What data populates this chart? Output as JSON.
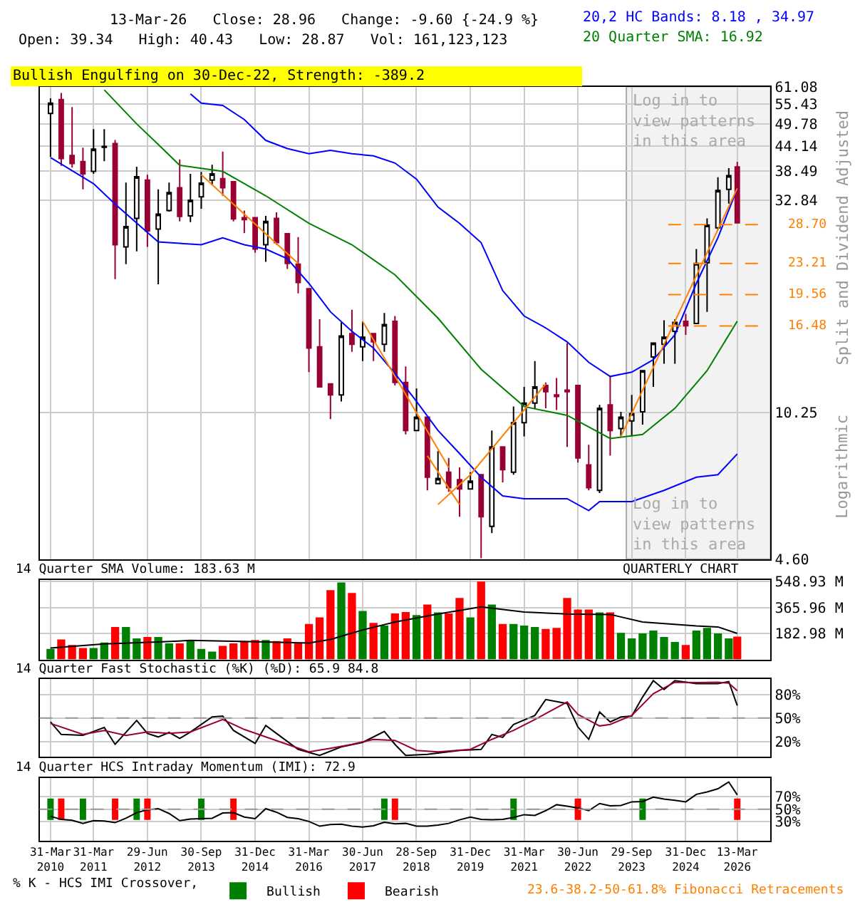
{
  "chart_data": [
    {
      "type": "candlestick",
      "title": "13-Mar-26   Close: 28.96   Change: -9.60 {-24.9 %}",
      "subtitle": "Open: 39.34   High: 40.43   Low: 28.87   Vol: 161,123,123",
      "ylabel": "Split and Dividend Adjusted",
      "x": [
        "2010-03-31",
        "2010-06-30",
        "2010-09-30",
        "2010-12-31",
        "2011-03-31",
        "2011-06-30",
        "2011-09-30",
        "2011-12-31",
        "2012-03-31",
        "2012-06-30",
        "2012-09-30",
        "2012-12-31",
        "2013-03-31",
        "2013-06-30",
        "2013-09-30",
        "2013-12-31",
        "2014-03-31",
        "2014-06-30",
        "2014-09-30",
        "2014-12-31",
        "2015-03-31",
        "2015-06-30",
        "2015-09-30",
        "2015-12-31",
        "2016-03-31",
        "2016-06-30",
        "2016-09-30",
        "2016-12-31",
        "2017-03-31",
        "2017-06-30",
        "2017-09-30",
        "2017-12-31",
        "2018-03-31",
        "2018-06-30",
        "2018-09-30",
        "2018-12-31",
        "2019-03-31",
        "2019-06-30",
        "2019-09-30",
        "2019-12-31",
        "2020-03-31",
        "2020-06-30",
        "2020-09-30",
        "2020-12-31",
        "2021-03-31",
        "2021-06-30",
        "2021-09-30",
        "2021-12-31",
        "2022-03-31",
        "2022-06-30",
        "2022-09-30",
        "2022-12-31",
        "2023-03-31",
        "2023-06-30",
        "2023-09-30",
        "2023-12-31",
        "2024-03-31",
        "2024-06-30",
        "2024-09-30",
        "2024-12-31",
        "2025-03-31",
        "2025-06-30",
        "2025-09-30",
        "2025-12-31",
        "2026-03-13"
      ],
      "ohlc": [
        [
          52.7,
          57.3,
          41.6,
          55.8
        ],
        [
          56.9,
          59.0,
          39.6,
          41.2
        ],
        [
          41.9,
          54.6,
          39.2,
          40.1
        ],
        [
          40.5,
          43.7,
          34.8,
          37.9
        ],
        [
          38.4,
          48.4,
          37.9,
          43.4
        ],
        [
          43.8,
          48.4,
          40.6,
          44.0
        ],
        [
          44.7,
          45.6,
          21.3,
          25.7
        ],
        [
          25.4,
          36.1,
          23.1,
          28.4
        ],
        [
          29.7,
          39.4,
          24.8,
          37.3
        ],
        [
          36.6,
          37.7,
          25.4,
          27.7
        ],
        [
          28.0,
          34.8,
          20.7,
          30.4
        ],
        [
          31.0,
          36.1,
          30.8,
          34.2
        ],
        [
          35.1,
          41.0,
          29.2,
          30.0
        ],
        [
          30.1,
          37.9,
          29.1,
          32.8
        ],
        [
          33.4,
          38.3,
          31.3,
          36.0
        ],
        [
          36.6,
          39.8,
          35.6,
          37.9
        ],
        [
          36.9,
          42.8,
          33.6,
          35.1
        ],
        [
          36.3,
          36.3,
          29.2,
          29.6
        ],
        [
          29.8,
          31.0,
          27.4,
          29.5
        ],
        [
          29.8,
          29.8,
          24.6,
          25.1
        ],
        [
          25.7,
          30.1,
          23.4,
          29.2
        ],
        [
          29.7,
          30.7,
          25.7,
          26.0
        ],
        [
          27.3,
          27.3,
          22.5,
          23.2
        ],
        [
          23.1,
          26.8,
          19.7,
          20.9
        ],
        [
          20.2,
          20.2,
          12.8,
          14.6
        ],
        [
          14.7,
          17.1,
          11.8,
          11.8
        ],
        [
          12.0,
          12.0,
          9.9,
          11.3
        ],
        [
          11.3,
          16.8,
          10.9,
          15.6
        ],
        [
          15.8,
          18.0,
          14.3,
          14.9
        ],
        [
          14.7,
          16.9,
          13.6,
          15.5
        ],
        [
          15.8,
          15.8,
          13.6,
          15.1
        ],
        [
          14.9,
          17.7,
          14.3,
          16.6
        ],
        [
          16.9,
          17.4,
          11.9,
          12.1
        ],
        [
          12.1,
          13.2,
          9.1,
          9.3
        ],
        [
          9.3,
          11.7,
          9.3,
          10.0
        ],
        [
          10.0,
          10.0,
          6.7,
          7.2
        ],
        [
          6.95,
          8.3,
          6.95,
          7.15
        ],
        [
          7.4,
          8.0,
          6.65,
          6.8
        ],
        [
          7.1,
          7.6,
          5.8,
          6.75
        ],
        [
          6.75,
          7.4,
          6.75,
          7.05
        ],
        [
          7.3,
          7.3,
          4.62,
          5.8
        ],
        [
          5.5,
          9.3,
          5.3,
          8.5
        ],
        [
          8.5,
          8.5,
          7.0,
          7.5
        ],
        [
          7.4,
          10.6,
          7.3,
          9.7
        ],
        [
          9.7,
          11.8,
          9.0,
          10.8
        ],
        [
          10.8,
          13.6,
          10.5,
          11.8
        ],
        [
          11.9,
          12.1,
          10.5,
          11.5
        ],
        [
          11.3,
          12.4,
          10.4,
          11.2
        ],
        [
          11.6,
          15.0,
          8.5,
          11.5
        ],
        [
          11.9,
          11.9,
          7.8,
          8.0
        ],
        [
          7.7,
          8.6,
          6.7,
          6.8
        ],
        [
          6.7,
          10.7,
          6.6,
          10.5
        ],
        [
          10.7,
          12.5,
          8.1,
          9.3
        ],
        [
          9.4,
          10.3,
          9.0,
          10.0
        ],
        [
          9.8,
          11.3,
          9.0,
          10.2
        ],
        [
          10.3,
          12.9,
          9.6,
          12.9
        ],
        [
          13.9,
          15.0,
          11.8,
          15.0
        ],
        [
          14.9,
          17.0,
          13.4,
          15.5
        ],
        [
          16.0,
          17.1,
          13.4,
          16.8
        ],
        [
          16.9,
          17.6,
          15.7,
          16.5
        ],
        [
          16.7,
          25.1,
          16.7,
          23.2
        ],
        [
          23.3,
          29.7,
          17.8,
          28.6
        ],
        [
          28.2,
          37.2,
          27.9,
          34.6
        ],
        [
          34.8,
          39.1,
          32.2,
          37.5
        ],
        [
          39.34,
          40.43,
          28.87,
          28.96
        ]
      ],
      "series": [
        {
          "type": "line",
          "name": "20,2 HC Bands: 8.18 , 34.97",
          "color": "#0000ff",
          "x": [
            "2013-06-30",
            "2013-09-30",
            "2014-03-31",
            "2014-09-30",
            "2015-03-31",
            "2015-09-30",
            "2016-03-31",
            "2016-09-30",
            "2017-03-31",
            "2017-09-30",
            "2018-03-31",
            "2018-09-30",
            "2019-03-31",
            "2019-09-30",
            "2020-03-31",
            "2020-09-30",
            "2021-03-31",
            "2021-09-30",
            "2022-03-31",
            "2022-09-30",
            "2023-03-31",
            "2023-09-30",
            "2024-03-31",
            "2024-09-30",
            "2025-03-31",
            "2025-09-30",
            "2026-03-13"
          ],
          "values": [
            58.7,
            55.8,
            55.1,
            51.0,
            45.5,
            43.5,
            42.3,
            43.1,
            42.3,
            41.8,
            40.2,
            36.8,
            31.6,
            28.9,
            26.0,
            20.0,
            17.4,
            16.3,
            15.1,
            13.5,
            12.5,
            12.8,
            13.7,
            15.7,
            20.8,
            26.7,
            34.97
          ]
        },
        {
          "type": "line",
          "color": "#0000ff",
          "x": [
            "2010-03-31",
            "2011-03-31",
            "2011-09-30",
            "2012-09-30",
            "2013-09-30",
            "2014-03-31",
            "2014-09-30",
            "2015-03-31",
            "2015-09-30",
            "2016-03-31",
            "2016-09-30",
            "2017-03-31",
            "2017-09-30",
            "2018-03-31",
            "2018-09-30",
            "2019-03-31",
            "2019-09-30",
            "2020-03-31",
            "2020-09-30",
            "2021-03-31",
            "2022-03-31",
            "2022-09-30",
            "2022-12-31",
            "2023-09-30",
            "2024-06-30",
            "2025-03-31",
            "2025-09-30",
            "2026-03-13"
          ],
          "values": [
            41.4,
            35.9,
            32.1,
            26.1,
            25.7,
            26.7,
            25.7,
            25.1,
            23.8,
            20.8,
            17.8,
            16.0,
            14.6,
            12.7,
            10.9,
            9.3,
            8.2,
            7.2,
            6.5,
            6.4,
            6.4,
            6.0,
            6.3,
            6.3,
            6.7,
            7.2,
            7.3,
            8.18
          ]
        },
        {
          "type": "line",
          "name": "20 Quarter SMA: 16.92",
          "color": "#008000",
          "x": [
            "2011-06-30",
            "2012-03-31",
            "2012-09-30",
            "2013-03-31",
            "2014-03-31",
            "2015-03-31",
            "2016-03-31",
            "2017-03-31",
            "2018-03-31",
            "2019-03-31",
            "2020-03-31",
            "2021-03-31",
            "2022-03-31",
            "2023-03-31",
            "2023-12-31",
            "2024-09-30",
            "2025-06-30",
            "2026-03-13"
          ],
          "values": [
            60.0,
            49.8,
            44.5,
            39.7,
            38.4,
            33.6,
            28.9,
            25.7,
            21.8,
            17.2,
            13.0,
            10.6,
            10.1,
            8.9,
            9.1,
            10.5,
            12.9,
            16.92
          ]
        },
        {
          "type": "line",
          "color": "#ff8000",
          "x": [
            "2013-09-30",
            "2015-12-31"
          ],
          "values": [
            37.7,
            23.2
          ]
        },
        {
          "type": "line",
          "color": "#ff8000",
          "x": [
            "2017-06-30",
            "2019-06-30"
          ],
          "values": [
            16.9,
            7.6
          ]
        },
        {
          "type": "line",
          "color": "#ff8000",
          "x": [
            "2018-12-31",
            "2019-09-30"
          ],
          "values": [
            8.1,
            6.2
          ]
        },
        {
          "type": "line",
          "color": "#ff8000",
          "x": [
            "2019-03-31",
            "2019-12-31",
            "2021-09-30"
          ],
          "values": [
            6.2,
            7.3,
            12.0
          ]
        },
        {
          "type": "line",
          "color": "#ff8000",
          "x": [
            "2023-06-30",
            "2026-03-13"
          ],
          "values": [
            9.0,
            35.0
          ]
        }
      ],
      "xlim": [
        "2009-12-28",
        "2026-12-20"
      ],
      "xticks": [
        "2010-03-31",
        "2011-03-31",
        "2012-06-29",
        "2013-09-30",
        "2014-12-31",
        "2016-03-31",
        "2017-06-30",
        "2018-09-28",
        "2019-12-31",
        "2021-03-31",
        "2022-06-30",
        "2023-09-29",
        "2024-12-31",
        "2026-03-13"
      ],
      "ylim": [
        4.6,
        61.08
      ],
      "log": true,
      "yticks": [
        {
          "value": 4.6,
          "label": "4.60"
        },
        10.25,
        32.84,
        38.49,
        44.14,
        49.78,
        55.43,
        61.08
      ],
      "grid": true,
      "tick_labels": "y",
      "bands": [
        {
          "axis": "x",
          "from": "2023-08-15",
          "to": "2026-12-20",
          "color": "#f2f2f2",
          "label": "Log in to\nview patterns\nin this area"
        }
      ],
      "ref_lines": [
        {
          "axis": "y",
          "value": 28.7,
          "label": "28.70",
          "color": "#ff8000",
          "line_style": "dashed"
        },
        {
          "axis": "y",
          "value": 23.21,
          "label": "23.21",
          "color": "#ff8000",
          "line_style": "dashed"
        },
        {
          "axis": "y",
          "value": 19.56,
          "label": "19.56",
          "color": "#ff8000",
          "line_style": "dashed"
        },
        {
          "axis": "y",
          "value": 16.48,
          "label": "16.48",
          "color": "#ff8000",
          "line_style": "dashed"
        }
      ],
      "annotations": [
        "Bullish Engulfing on 30-Dec-22, Strength: -389.2",
        "Logarithmic",
        "Log in to\nview patterns\nin this area"
      ]
    },
    {
      "type": "bar",
      "title": "14 Quarter SMA Volume: 183.63 M",
      "series": [
        {
          "type": "bar",
          "x": [
            "2010-03-31",
            "2010-06-30",
            "2010-09-30",
            "2010-12-31",
            "2011-03-31",
            "2011-06-30",
            "2011-09-30",
            "2011-12-31",
            "2012-03-31",
            "2012-06-30",
            "2012-09-30",
            "2012-12-31",
            "2013-03-31",
            "2013-06-30",
            "2013-09-30",
            "2013-12-31",
            "2014-03-31",
            "2014-06-30",
            "2014-09-30",
            "2014-12-31",
            "2015-03-31",
            "2015-06-30",
            "2015-09-30",
            "2015-12-31",
            "2016-03-31",
            "2016-06-30",
            "2016-09-30",
            "2016-12-31",
            "2017-03-31",
            "2017-06-30",
            "2017-09-30",
            "2017-12-31",
            "2018-03-31",
            "2018-06-30",
            "2018-09-30",
            "2018-12-31",
            "2019-03-31",
            "2019-06-30",
            "2019-09-30",
            "2019-12-31",
            "2020-03-31",
            "2020-06-30",
            "2020-09-30",
            "2020-12-31",
            "2021-03-31",
            "2021-06-30",
            "2021-09-30",
            "2021-12-31",
            "2022-03-31",
            "2022-06-30",
            "2022-09-30",
            "2022-12-31",
            "2023-03-31",
            "2023-06-30",
            "2023-09-30",
            "2023-12-31",
            "2024-03-31",
            "2024-06-30",
            "2024-09-30",
            "2024-12-31",
            "2025-03-31",
            "2025-06-30",
            "2025-09-30",
            "2025-12-31",
            "2026-03-13"
          ],
          "values": [
            74,
            141,
            102,
            81,
            81,
            120,
            229,
            229,
            148,
            158,
            158,
            113,
            113,
            134,
            74,
            56,
            95,
            113,
            130,
            137,
            137,
            130,
            148,
            113,
            250,
            296,
            489,
            542,
            468,
            341,
            257,
            239,
            324,
            334,
            313,
            387,
            331,
            324,
            433,
            296,
            549,
            387,
            250,
            250,
            239,
            229,
            215,
            222,
            433,
            352,
            352,
            331,
            331,
            187,
            148,
            183,
            204,
            158,
            123,
            102,
            204,
            222,
            183,
            148,
            161
          ],
          "colors": [
            "#008000",
            "#ff0000",
            "#ff0000",
            "#ff0000",
            "#008000",
            "#008000",
            "#ff0000",
            "#008000",
            "#008000",
            "#ff0000",
            "#008000",
            "#008000",
            "#ff0000",
            "#008000",
            "#008000",
            "#008000",
            "#ff0000",
            "#ff0000",
            "#ff0000",
            "#ff0000",
            "#008000",
            "#ff0000",
            "#ff0000",
            "#ff0000",
            "#ff0000",
            "#ff0000",
            "#ff0000",
            "#008000",
            "#ff0000",
            "#008000",
            "#ff0000",
            "#008000",
            "#ff0000",
            "#ff0000",
            "#008000",
            "#ff0000",
            "#008000",
            "#ff0000",
            "#ff0000",
            "#008000",
            "#ff0000",
            "#008000",
            "#ff0000",
            "#008000",
            "#008000",
            "#008000",
            "#ff0000",
            "#ff0000",
            "#ff0000",
            "#ff0000",
            "#ff0000",
            "#008000",
            "#ff0000",
            "#008000",
            "#008000",
            "#008000",
            "#008000",
            "#008000",
            "#008000",
            "#ff0000",
            "#008000",
            "#008000",
            "#008000",
            "#008000",
            "#ff0000"
          ]
        },
        {
          "type": "line",
          "color": "#000000",
          "x": [
            "2010-03-31",
            "2011-06-30",
            "2012-09-30",
            "2013-06-30",
            "2015-03-31",
            "2016-03-31",
            "2016-09-30",
            "2017-06-30",
            "2018-03-31",
            "2019-03-31",
            "2020-03-31",
            "2021-03-31",
            "2022-03-31",
            "2023-03-31",
            "2023-12-31",
            "2025-03-31",
            "2025-09-30",
            "2026-03-13"
          ],
          "values": [
            81,
            109,
            123,
            134,
            123,
            116,
            141,
            208,
            264,
            320,
            370,
            334,
            320,
            317,
            264,
            236,
            229,
            183.63
          ]
        }
      ],
      "xlim": [
        "2009-12-28",
        "2026-12-20"
      ],
      "xticks": [
        "2010-03-31",
        "2011-03-31",
        "2012-06-29",
        "2013-09-30",
        "2014-12-31",
        "2016-03-31",
        "2017-06-30",
        "2018-09-28",
        "2019-12-31",
        "2021-03-31",
        "2022-06-30",
        "2023-09-29",
        "2024-12-31",
        "2026-03-13"
      ],
      "ylim": [
        0,
        560
      ],
      "yticks": [
        {
          "value": 182.98,
          "label": "182.98 M"
        },
        {
          "value": 365.96,
          "label": "365.96 M"
        },
        {
          "value": 548.93,
          "label": "548.93 M"
        }
      ],
      "grid": true,
      "tick_labels": "y",
      "annotations": [
        "QUARTERLY CHART"
      ]
    },
    {
      "type": "line",
      "title": "14 Quarter Fast Stochastic (%K) (%D): 65.9 84.8",
      "series": [
        {
          "color": "#000000",
          "x": [
            "2010-03-31",
            "2010-06-30",
            "2010-12-31",
            "2011-06-30",
            "2011-09-30",
            "2012-03-31",
            "2012-06-30",
            "2012-09-30",
            "2012-12-31",
            "2013-03-31",
            "2013-06-30",
            "2013-12-31",
            "2014-03-31",
            "2014-06-30",
            "2014-12-31",
            "2015-03-31",
            "2015-06-30",
            "2015-12-31",
            "2016-06-30",
            "2016-12-31",
            "2017-06-30",
            "2017-12-31",
            "2018-03-31",
            "2018-06-30",
            "2018-12-31",
            "2019-09-30",
            "2020-03-31",
            "2020-06-30",
            "2020-09-30",
            "2020-12-31",
            "2021-06-30",
            "2021-09-30",
            "2022-03-31",
            "2022-06-30",
            "2022-09-30",
            "2022-12-31",
            "2023-03-31",
            "2023-06-30",
            "2023-09-30",
            "2023-12-31",
            "2024-03-31",
            "2024-06-30",
            "2024-09-30",
            "2025-03-31",
            "2025-09-30",
            "2025-12-31",
            "2026-03-13"
          ],
          "values": [
            44.9,
            28.9,
            27.7,
            37.9,
            16.2,
            46.8,
            30.2,
            25.7,
            31.5,
            23.8,
            32.1,
            51.3,
            52.5,
            34.0,
            17.4,
            40.4,
            30.2,
            9.8,
            2.1,
            13.0,
            18.7,
            32.8,
            16.2,
            2.1,
            3.4,
            8.5,
            9.8,
            28.9,
            25.1,
            41.7,
            53.2,
            73.6,
            68.5,
            38.5,
            22.6,
            57.6,
            44.9,
            51.3,
            52.5,
            76.8,
            97.8,
            86.4,
            97.8,
            94.0,
            94.0,
            96.6,
            65.9
          ]
        },
        {
          "color": "#990033",
          "x": [
            "2010-03-31",
            "2010-12-31",
            "2011-06-30",
            "2011-12-31",
            "2012-06-30",
            "2012-12-31",
            "2013-06-30",
            "2014-03-31",
            "2014-09-30",
            "2015-03-31",
            "2015-09-30",
            "2016-03-31",
            "2016-09-30",
            "2017-03-31",
            "2017-09-30",
            "2018-03-31",
            "2018-09-30",
            "2019-03-31",
            "2019-12-31",
            "2020-06-30",
            "2020-12-31",
            "2021-06-30",
            "2022-03-31",
            "2022-06-30",
            "2022-12-31",
            "2023-03-31",
            "2023-09-30",
            "2024-03-31",
            "2024-09-30",
            "2025-03-31",
            "2025-09-30",
            "2025-12-31",
            "2026-03-13"
          ],
          "values": [
            43.0,
            28.9,
            34.0,
            27.7,
            32.1,
            30.2,
            32.1,
            48.1,
            35.3,
            25.7,
            16.2,
            6.6,
            11.1,
            16.2,
            22.6,
            21.3,
            8.5,
            6.6,
            9.8,
            22.6,
            34.0,
            48.1,
            70.4,
            54.5,
            39.8,
            41.7,
            53.2,
            81.2,
            95.9,
            95.3,
            95.9,
            94.6,
            84.8
          ]
        }
      ],
      "xlim": [
        "2009-12-28",
        "2026-12-20"
      ],
      "xticks": [
        "2010-03-31",
        "2011-03-31",
        "2012-06-29",
        "2013-09-30",
        "2014-12-31",
        "2016-03-31",
        "2017-06-30",
        "2018-09-28",
        "2019-12-31",
        "2021-03-31",
        "2022-06-30",
        "2023-09-29",
        "2024-12-31",
        "2026-03-13"
      ],
      "ylim": [
        0,
        100
      ],
      "yticks": [
        {
          "value": 20,
          "label": "20%"
        },
        {
          "value": 50,
          "label": "50%"
        },
        {
          "value": 80,
          "label": "80%"
        }
      ],
      "grid": true,
      "tick_labels": "y",
      "ref_lines": [
        {
          "axis": "y",
          "value": 50,
          "color": "#999999",
          "line_style": "dashed"
        }
      ]
    },
    {
      "type": "line",
      "title": "14 Quarter HCS Intraday Momentum (IMI): 72.9",
      "legend": "bottom",
      "legend_title": "% K - HCS IMI Crossover,",
      "series": [
        {
          "type": "bar",
          "name": "Bullish",
          "color": "#008000",
          "x": [
            "2010-03-31",
            "2010-12-31",
            "2012-03-31",
            "2013-09-30",
            "2017-12-31",
            "2020-12-31",
            "2023-12-31"
          ],
          "base": [
            33,
            33,
            33,
            33,
            33,
            33,
            33
          ],
          "values": [
            34,
            34,
            34,
            34,
            34,
            34,
            34
          ]
        },
        {
          "type": "bar",
          "name": "Bearish",
          "color": "#ff0000",
          "x": [
            "2010-06-30",
            "2011-09-30",
            "2012-06-30",
            "2014-06-30",
            "2018-03-31",
            "2022-06-30",
            "2026-03-13"
          ],
          "base": [
            33,
            33,
            33,
            33,
            33,
            33,
            33
          ],
          "values": [
            34,
            34,
            34,
            34,
            34,
            34,
            34
          ]
        },
        {
          "type": "line",
          "color": "#000000",
          "x": [
            "2010-03-31",
            "2010-06-30",
            "2010-09-30",
            "2010-12-31",
            "2011-03-31",
            "2011-06-30",
            "2011-09-30",
            "2011-12-31",
            "2012-03-31",
            "2012-06-30",
            "2012-09-30",
            "2012-12-31",
            "2013-03-31",
            "2013-06-30",
            "2013-09-30",
            "2013-12-31",
            "2014-03-31",
            "2014-06-30",
            "2014-09-30",
            "2014-12-31",
            "2015-03-31",
            "2015-06-30",
            "2015-09-30",
            "2015-12-31",
            "2016-03-31",
            "2016-06-30",
            "2016-09-30",
            "2016-12-31",
            "2017-03-31",
            "2017-06-30",
            "2017-09-30",
            "2017-12-31",
            "2018-03-31",
            "2018-06-30",
            "2018-09-30",
            "2018-12-31",
            "2019-03-31",
            "2019-06-30",
            "2019-09-30",
            "2019-12-31",
            "2020-03-31",
            "2020-06-30",
            "2020-09-30",
            "2020-12-31",
            "2021-03-31",
            "2021-06-30",
            "2021-09-30",
            "2021-12-31",
            "2022-03-31",
            "2022-06-30",
            "2022-09-30",
            "2022-12-31",
            "2023-03-31",
            "2023-06-30",
            "2023-09-30",
            "2023-12-31",
            "2024-03-31",
            "2024-06-30",
            "2024-09-30",
            "2024-12-31",
            "2025-03-31",
            "2025-06-30",
            "2025-09-30",
            "2025-12-31",
            "2026-03-13"
          ],
          "values": [
            38.9,
            33.8,
            32.5,
            27.5,
            31.9,
            31.3,
            28.7,
            35.7,
            44.6,
            49.1,
            51.0,
            43.3,
            31.9,
            34.4,
            35.1,
            35.7,
            44.0,
            44.6,
            37.6,
            35.1,
            51.0,
            45.3,
            37.0,
            35.1,
            30.6,
            23.0,
            25.6,
            26.2,
            23.0,
            21.7,
            23.7,
            29.4,
            26.8,
            27.5,
            23.0,
            23.0,
            24.9,
            27.5,
            33.2,
            37.6,
            33.8,
            33.2,
            33.8,
            37.0,
            41.4,
            40.2,
            47.8,
            57.3,
            54.8,
            52.2,
            47.8,
            59.2,
            55.4,
            56.0,
            61.8,
            62.4,
            69.4,
            66.2,
            64.3,
            61.8,
            73.8,
            77.6,
            82.7,
            93.5,
            72.9
          ]
        }
      ],
      "xlim": [
        "2009-12-28",
        "2026-12-20"
      ],
      "xticks": [
        {
          "value": "2010-03-31",
          "label": "31-Mar\n2010"
        },
        {
          "value": "2011-03-31",
          "label": "31-Mar\n2011"
        },
        {
          "value": "2012-06-29",
          "label": "29-Jun\n2012"
        },
        {
          "value": "2013-09-30",
          "label": "30-Sep\n2013"
        },
        {
          "value": "2014-12-31",
          "label": "31-Dec\n2014"
        },
        {
          "value": "2016-03-31",
          "label": "31-Mar\n2016"
        },
        {
          "value": "2017-06-30",
          "label": "30-Jun\n2017"
        },
        {
          "value": "2018-09-28",
          "label": "28-Sep\n2018"
        },
        {
          "value": "2019-12-31",
          "label": "31-Dec\n2019"
        },
        {
          "value": "2021-03-31",
          "label": "31-Mar\n2021"
        },
        {
          "value": "2022-06-30",
          "label": "30-Jun\n2022"
        },
        {
          "value": "2023-09-29",
          "label": "29-Sep\n2023"
        },
        {
          "value": "2024-12-31",
          "label": "31-Dec\n2024"
        },
        {
          "value": "2026-03-13",
          "label": "13-Mar\n2026"
        }
      ],
      "ylim": [
        0,
        100
      ],
      "yticks": [
        {
          "value": 30,
          "label": "30%"
        },
        {
          "value": 50,
          "label": "50%"
        },
        {
          "value": 70,
          "label": "70%"
        }
      ],
      "grid": true,
      "ref_lines": [
        {
          "axis": "y",
          "value": 50,
          "color": "#999999",
          "line_style": "dashed"
        }
      ],
      "annotations": [
        "23.6-38.2-50-61.8% Fibonacci Retracements"
      ]
    }
  ]
}
